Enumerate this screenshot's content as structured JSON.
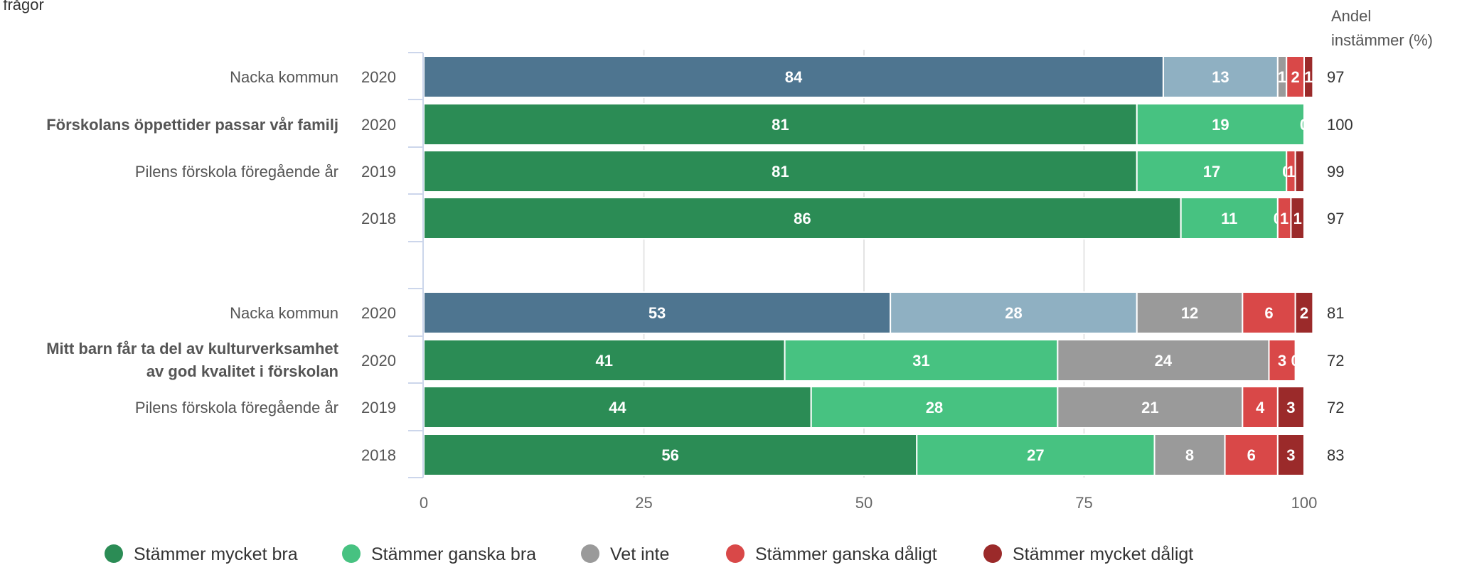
{
  "chart_data": {
    "type": "bar",
    "orientation": "horizontal",
    "stacked": true,
    "title": "a frågor",
    "right_header": [
      "Andel",
      "instämmer (%)"
    ],
    "xlim": [
      0,
      100
    ],
    "xticks": [
      0,
      25,
      50,
      75,
      100
    ],
    "grid": true,
    "legend_position": "bottom",
    "series": [
      {
        "name": "Stämmer mycket bra",
        "color": "#2b8c55"
      },
      {
        "name": "Stämmer ganska bra",
        "color": "#47c281"
      },
      {
        "name": "Vet inte",
        "color": "#9a9a9a"
      },
      {
        "name": "Stämmer ganska dåligt",
        "color": "#d94848"
      },
      {
        "name": "Stämmer mycket dåligt",
        "color": "#9b2a2a"
      }
    ],
    "nacka_colors": [
      "#4e7590",
      "#8fb0c2",
      "#9a9a9a",
      "#d94848",
      "#9b2a2a"
    ],
    "groups": [
      {
        "question": [
          "Förskolans öppettider passar vår familj"
        ],
        "rows": [
          {
            "label": "Nacka kommun",
            "year": "2020",
            "values": [
              84,
              13,
              1,
              2,
              1
            ],
            "value_labels": [
              "84",
              "13",
              "1",
              "2",
              "1"
            ],
            "share": "97",
            "nacka": true
          },
          {
            "label": "",
            "year": "2020",
            "values": [
              81,
              19,
              0,
              0,
              0
            ],
            "value_labels": [
              "81",
              "19",
              "0",
              "",
              ""
            ],
            "share": "100",
            "nacka": false
          },
          {
            "label": "Pilens förskola föregående år",
            "year": "2019",
            "values": [
              81,
              17,
              0,
              1,
              1
            ],
            "value_labels": [
              "81",
              "17",
              "0",
              "1",
              ""
            ],
            "share": "99",
            "nacka": false
          },
          {
            "label": "",
            "year": "2018",
            "values": [
              86,
              11,
              0,
              1.5,
              1.5
            ],
            "value_labels": [
              "86",
              "11",
              "0",
              "1",
              "1"
            ],
            "share": "97",
            "nacka": false
          }
        ]
      },
      {
        "question": [
          "Mitt barn får ta del av kulturverksamhet",
          "av god kvalitet i förskolan"
        ],
        "rows": [
          {
            "label": "Nacka kommun",
            "year": "2020",
            "values": [
              53,
              28,
              12,
              6,
              2
            ],
            "value_labels": [
              "53",
              "28",
              "12",
              "6",
              "2"
            ],
            "share": "81",
            "nacka": true
          },
          {
            "label": "",
            "year": "2020",
            "values": [
              41,
              31,
              24,
              3,
              0
            ],
            "value_labels": [
              "41",
              "31",
              "24",
              "3",
              "0"
            ],
            "share": "72",
            "nacka": false
          },
          {
            "label": "Pilens förskola föregående år",
            "year": "2019",
            "values": [
              44,
              28,
              21,
              4,
              3
            ],
            "value_labels": [
              "44",
              "28",
              "21",
              "4",
              "3"
            ],
            "share": "72",
            "nacka": false
          },
          {
            "label": "",
            "year": "2018",
            "values": [
              56,
              27,
              8,
              6,
              3
            ],
            "value_labels": [
              "56",
              "27",
              "8",
              "6",
              "3"
            ],
            "share": "83",
            "nacka": false
          }
        ]
      }
    ]
  }
}
